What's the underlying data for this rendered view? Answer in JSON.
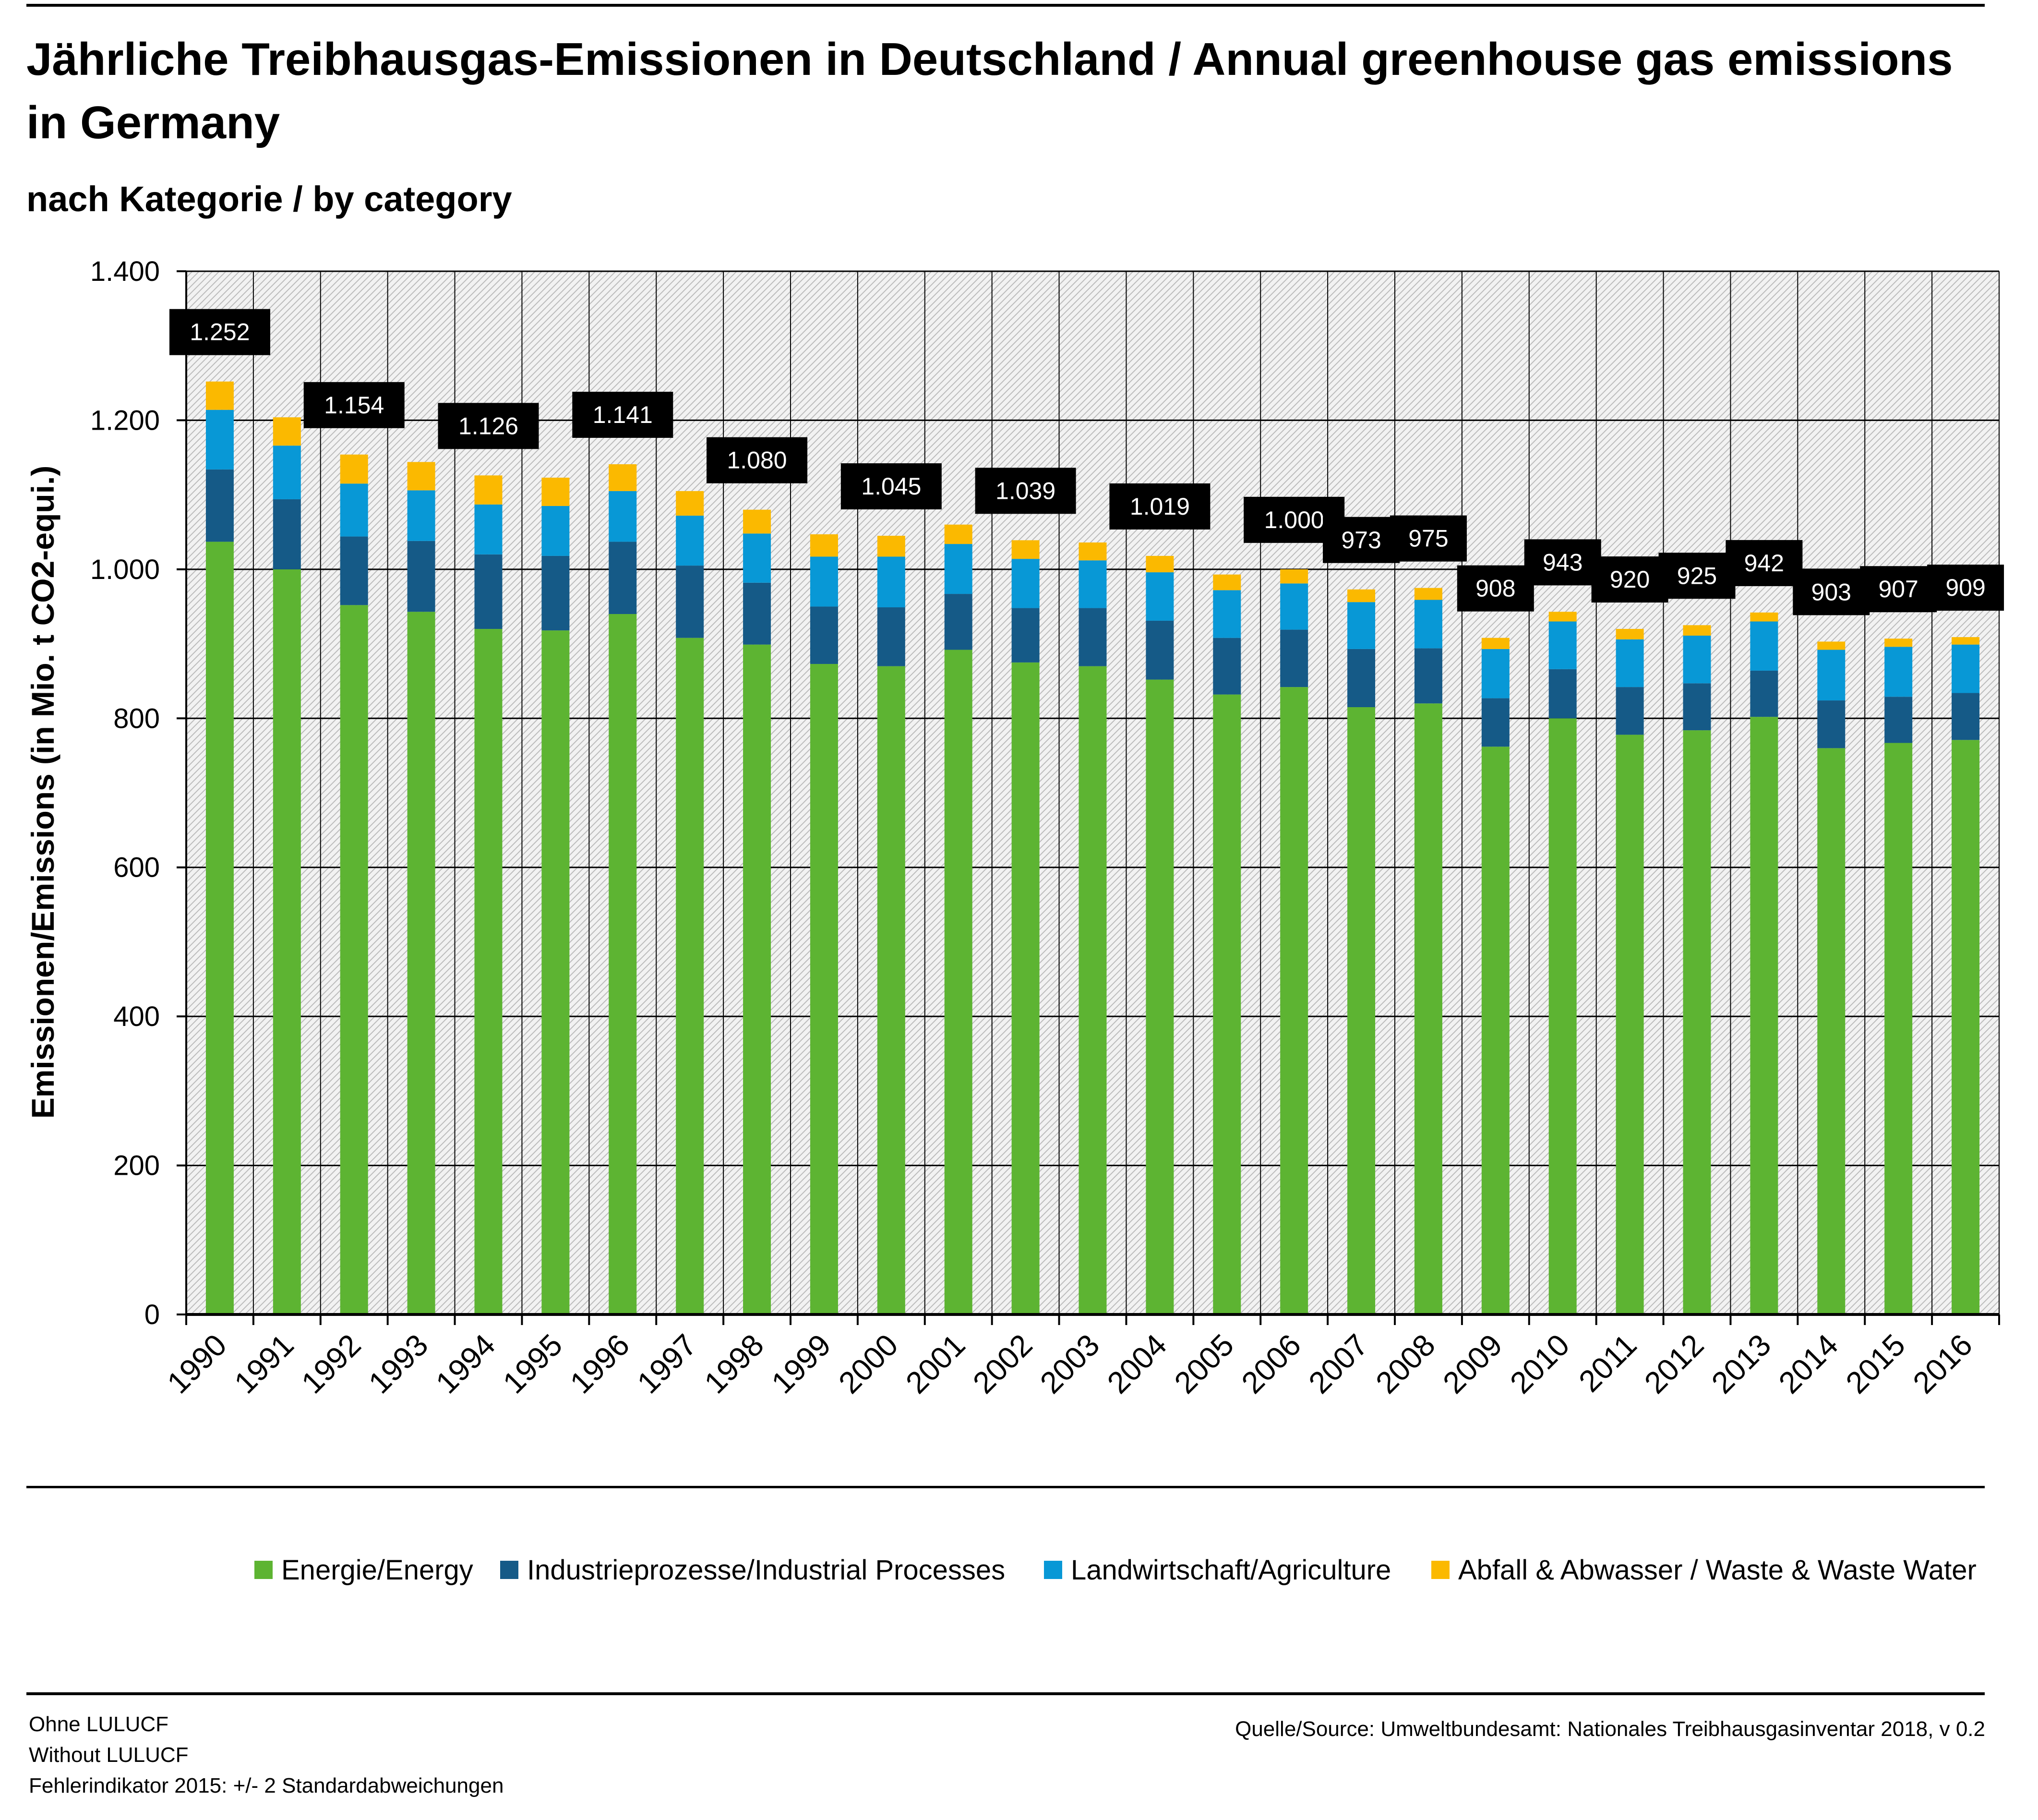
{
  "header": {
    "title": "Jährliche Treibhausgas-Emissionen in Deutschland / Annual greenhouse gas emissions in Germany",
    "subtitle": "nach Kategorie / by category"
  },
  "colors": {
    "energy": "#5db432",
    "industry": "#155a87",
    "agriculture": "#0898d6",
    "waste": "#fbb900",
    "label_bg": "#000000",
    "label_text": "#ffffff",
    "plot_bg": "#f2f2f2",
    "hatch": "#bbbbbb"
  },
  "chart_data": {
    "type": "bar",
    "stacked": true,
    "ylabel": "Emissionen/Emissions (in Mio. t CO2-equi.)",
    "xlabel": "",
    "ylim": [
      0,
      1400
    ],
    "yticks": [
      0,
      200,
      400,
      600,
      800,
      1000,
      1200,
      1400
    ],
    "ytick_labels": [
      "0",
      "200",
      "400",
      "600",
      "800",
      "1.000",
      "1.200",
      "1.400"
    ],
    "grid": true,
    "legend_position": "bottom",
    "categories": [
      "1990",
      "1991",
      "1992",
      "1993",
      "1994",
      "1995",
      "1996",
      "1997",
      "1998",
      "1999",
      "2000",
      "2001",
      "2002",
      "2003",
      "2004",
      "2005",
      "2006",
      "2007",
      "2008",
      "2009",
      "2010",
      "2011",
      "2012",
      "2013",
      "2014",
      "2015",
      "2016"
    ],
    "series": [
      {
        "name": "Energie/Energy",
        "key": "energy",
        "values": [
          1037,
          1000,
          952,
          943,
          920,
          918,
          940,
          908,
          899,
          873,
          870,
          892,
          875,
          870,
          852,
          832,
          842,
          815,
          820,
          762,
          800,
          778,
          784,
          802,
          760,
          767,
          771
        ]
      },
      {
        "name": "Industrieprozesse/Industrial Processes",
        "key": "industry",
        "values": [
          97,
          94,
          92,
          95,
          100,
          100,
          97,
          97,
          83,
          77,
          79,
          75,
          73,
          78,
          79,
          76,
          77,
          78,
          74,
          65,
          66,
          64,
          63,
          62,
          64,
          62,
          63
        ]
      },
      {
        "name": "Landwirtschaft/Agriculture",
        "key": "agriculture",
        "values": [
          80,
          72,
          71,
          68,
          67,
          67,
          68,
          67,
          66,
          67,
          68,
          67,
          66,
          64,
          65,
          64,
          62,
          63,
          65,
          66,
          64,
          64,
          64,
          66,
          68,
          67,
          65
        ]
      },
      {
        "name": "Abfall & Abwasser / Waste & Waste Water",
        "key": "waste",
        "values": [
          38,
          38,
          39,
          38,
          39,
          38,
          36,
          33,
          32,
          30,
          28,
          26,
          25,
          24,
          22,
          21,
          19,
          17,
          16,
          15,
          13,
          14,
          14,
          12,
          11,
          11,
          10
        ]
      }
    ],
    "data_labels": [
      "1.252",
      "",
      "1.154",
      "",
      "1.126",
      "",
      "1.141",
      "",
      "1.080",
      "",
      "1.045",
      "",
      "1.039",
      "",
      "1.019",
      "",
      "1.000",
      "973",
      "975",
      "908",
      "943",
      "920",
      "925",
      "942",
      "903",
      "907",
      "909"
    ],
    "data_label_values": [
      1252,
      null,
      1154,
      null,
      1126,
      null,
      1141,
      null,
      1080,
      null,
      1045,
      null,
      1039,
      null,
      1019,
      null,
      1000,
      973,
      975,
      908,
      943,
      920,
      925,
      942,
      903,
      907,
      909
    ]
  },
  "footer": {
    "left_lines": [
      "Ohne LULUCF",
      "Without LULUCF",
      "Fehlerindikator 2015: +/- 2 Standardabweichungen"
    ],
    "source": "Quelle/Source: Umweltbundesamt: Nationales Treibhausgasinventar 2018, v 0.2"
  }
}
